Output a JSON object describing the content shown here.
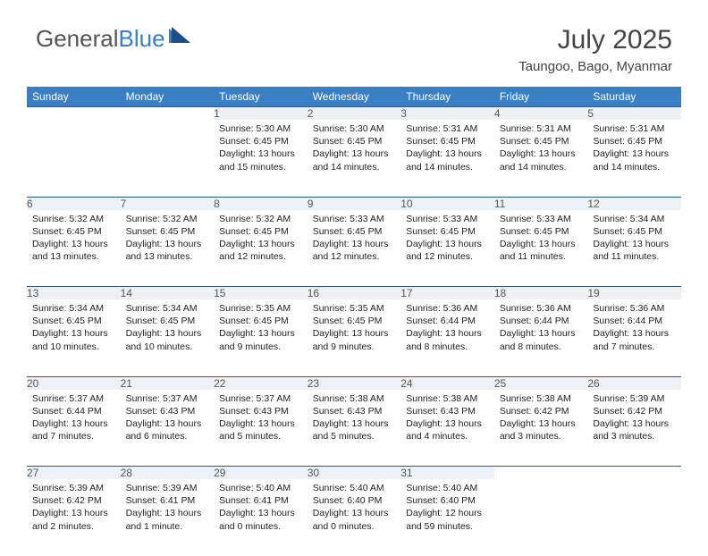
{
  "logo": {
    "part1": "General",
    "part2": "Blue"
  },
  "title": "July 2025",
  "location": "Taungoo, Bago, Myanmar",
  "colors": {
    "header_bg": "#3a7fc4",
    "header_fg": "#ffffff",
    "daynum_bg": "#eef1f3",
    "row_border": "#2a5a8c",
    "text": "#222222",
    "title_color": "#444444"
  },
  "typography": {
    "title_fontsize": 30,
    "location_fontsize": 15,
    "header_fontsize": 12,
    "daynum_fontsize": 12,
    "body_fontsize": 10.5
  },
  "weekdays": [
    "Sunday",
    "Monday",
    "Tuesday",
    "Wednesday",
    "Thursday",
    "Friday",
    "Saturday"
  ],
  "weeks": [
    [
      null,
      null,
      {
        "n": "1",
        "sunrise": "5:30 AM",
        "sunset": "6:45 PM",
        "daylight": "13 hours and 15 minutes."
      },
      {
        "n": "2",
        "sunrise": "5:30 AM",
        "sunset": "6:45 PM",
        "daylight": "13 hours and 14 minutes."
      },
      {
        "n": "3",
        "sunrise": "5:31 AM",
        "sunset": "6:45 PM",
        "daylight": "13 hours and 14 minutes."
      },
      {
        "n": "4",
        "sunrise": "5:31 AM",
        "sunset": "6:45 PM",
        "daylight": "13 hours and 14 minutes."
      },
      {
        "n": "5",
        "sunrise": "5:31 AM",
        "sunset": "6:45 PM",
        "daylight": "13 hours and 14 minutes."
      }
    ],
    [
      {
        "n": "6",
        "sunrise": "5:32 AM",
        "sunset": "6:45 PM",
        "daylight": "13 hours and 13 minutes."
      },
      {
        "n": "7",
        "sunrise": "5:32 AM",
        "sunset": "6:45 PM",
        "daylight": "13 hours and 13 minutes."
      },
      {
        "n": "8",
        "sunrise": "5:32 AM",
        "sunset": "6:45 PM",
        "daylight": "13 hours and 12 minutes."
      },
      {
        "n": "9",
        "sunrise": "5:33 AM",
        "sunset": "6:45 PM",
        "daylight": "13 hours and 12 minutes."
      },
      {
        "n": "10",
        "sunrise": "5:33 AM",
        "sunset": "6:45 PM",
        "daylight": "13 hours and 12 minutes."
      },
      {
        "n": "11",
        "sunrise": "5:33 AM",
        "sunset": "6:45 PM",
        "daylight": "13 hours and 11 minutes."
      },
      {
        "n": "12",
        "sunrise": "5:34 AM",
        "sunset": "6:45 PM",
        "daylight": "13 hours and 11 minutes."
      }
    ],
    [
      {
        "n": "13",
        "sunrise": "5:34 AM",
        "sunset": "6:45 PM",
        "daylight": "13 hours and 10 minutes."
      },
      {
        "n": "14",
        "sunrise": "5:34 AM",
        "sunset": "6:45 PM",
        "daylight": "13 hours and 10 minutes."
      },
      {
        "n": "15",
        "sunrise": "5:35 AM",
        "sunset": "6:45 PM",
        "daylight": "13 hours and 9 minutes."
      },
      {
        "n": "16",
        "sunrise": "5:35 AM",
        "sunset": "6:45 PM",
        "daylight": "13 hours and 9 minutes."
      },
      {
        "n": "17",
        "sunrise": "5:36 AM",
        "sunset": "6:44 PM",
        "daylight": "13 hours and 8 minutes."
      },
      {
        "n": "18",
        "sunrise": "5:36 AM",
        "sunset": "6:44 PM",
        "daylight": "13 hours and 8 minutes."
      },
      {
        "n": "19",
        "sunrise": "5:36 AM",
        "sunset": "6:44 PM",
        "daylight": "13 hours and 7 minutes."
      }
    ],
    [
      {
        "n": "20",
        "sunrise": "5:37 AM",
        "sunset": "6:44 PM",
        "daylight": "13 hours and 7 minutes."
      },
      {
        "n": "21",
        "sunrise": "5:37 AM",
        "sunset": "6:43 PM",
        "daylight": "13 hours and 6 minutes."
      },
      {
        "n": "22",
        "sunrise": "5:37 AM",
        "sunset": "6:43 PM",
        "daylight": "13 hours and 5 minutes."
      },
      {
        "n": "23",
        "sunrise": "5:38 AM",
        "sunset": "6:43 PM",
        "daylight": "13 hours and 5 minutes."
      },
      {
        "n": "24",
        "sunrise": "5:38 AM",
        "sunset": "6:43 PM",
        "daylight": "13 hours and 4 minutes."
      },
      {
        "n": "25",
        "sunrise": "5:38 AM",
        "sunset": "6:42 PM",
        "daylight": "13 hours and 3 minutes."
      },
      {
        "n": "26",
        "sunrise": "5:39 AM",
        "sunset": "6:42 PM",
        "daylight": "13 hours and 3 minutes."
      }
    ],
    [
      {
        "n": "27",
        "sunrise": "5:39 AM",
        "sunset": "6:42 PM",
        "daylight": "13 hours and 2 minutes."
      },
      {
        "n": "28",
        "sunrise": "5:39 AM",
        "sunset": "6:41 PM",
        "daylight": "13 hours and 1 minute."
      },
      {
        "n": "29",
        "sunrise": "5:40 AM",
        "sunset": "6:41 PM",
        "daylight": "13 hours and 0 minutes."
      },
      {
        "n": "30",
        "sunrise": "5:40 AM",
        "sunset": "6:40 PM",
        "daylight": "13 hours and 0 minutes."
      },
      {
        "n": "31",
        "sunrise": "5:40 AM",
        "sunset": "6:40 PM",
        "daylight": "12 hours and 59 minutes."
      },
      null,
      null
    ]
  ],
  "labels": {
    "sunrise": "Sunrise:",
    "sunset": "Sunset:",
    "daylight": "Daylight:"
  }
}
